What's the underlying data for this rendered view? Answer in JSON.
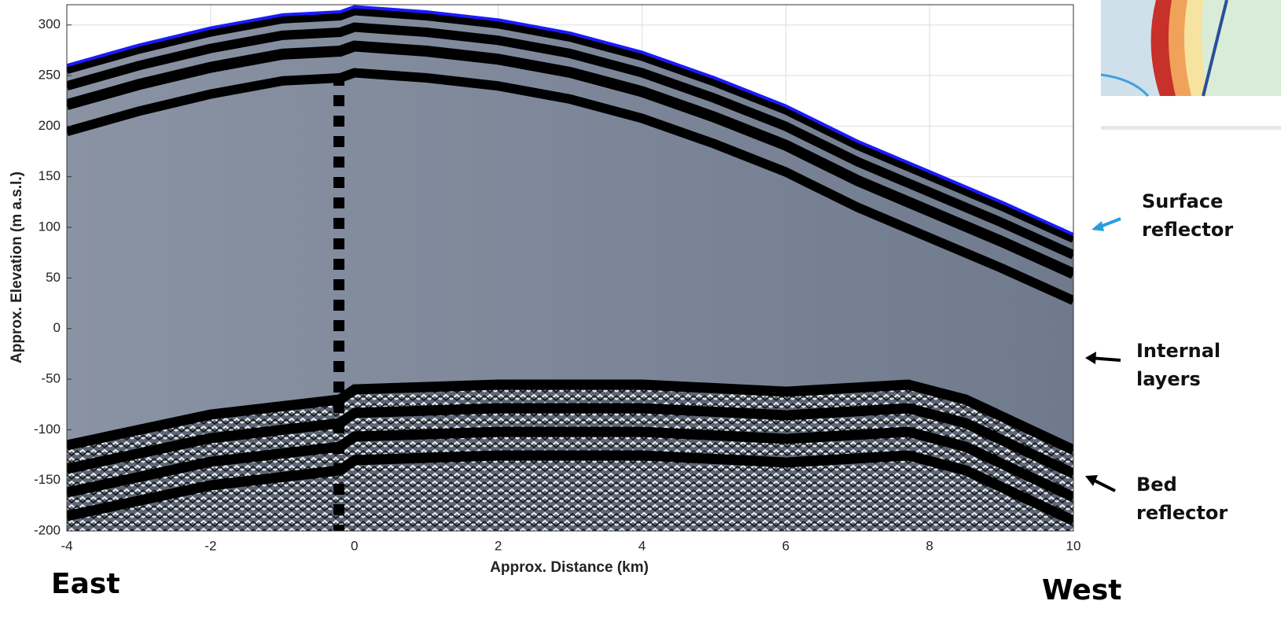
{
  "chart_data": {
    "type": "line",
    "xlabel": "Approx. Distance (km)",
    "ylabel": "Approx. Elevation (m a.s.l.)",
    "x": [
      -4,
      -3,
      -2,
      -1,
      -0.2,
      0,
      1,
      2,
      3,
      4,
      5,
      6,
      7,
      8,
      9,
      10
    ],
    "series": [
      {
        "name": "Surface reflector",
        "color": "#1a1aff",
        "values": [
          260,
          280,
          297,
          310,
          313,
          318,
          313,
          305,
          292,
          273,
          248,
          220,
          185,
          155,
          125,
          93
        ]
      }
    ],
    "xlim": [
      -4,
      10
    ],
    "xticks": [
      -4,
      -2,
      0,
      2,
      4,
      6,
      8,
      10
    ],
    "ylim": [
      -200,
      320
    ],
    "yticks": [
      -200,
      -150,
      -100,
      -50,
      0,
      50,
      100,
      150,
      200,
      250,
      300
    ],
    "grid": true,
    "annotations": [
      {
        "text": "Surface reflector"
      },
      {
        "text": "Internal layers"
      },
      {
        "text": "Bed reflector"
      },
      {
        "text": "East"
      },
      {
        "text": "West"
      }
    ]
  }
}
